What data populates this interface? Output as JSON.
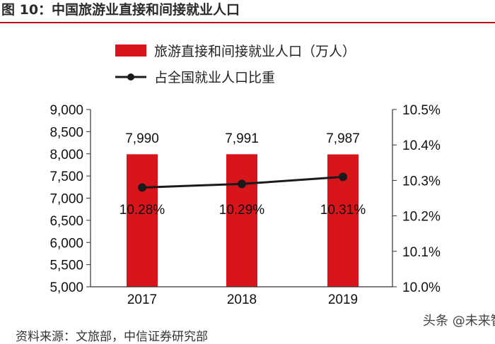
{
  "figure": {
    "title": "图 10：中国旅游业直接和间接就业人口",
    "source": "资料来源：文旅部，中信证券研究部",
    "watermark": "头条 @未来智库"
  },
  "colors": {
    "bar": "#d7151b",
    "line": "#1a1a1a",
    "title_rule": "#b3111e",
    "axis": "#333333"
  },
  "chart_data": {
    "type": "bar",
    "categories": [
      "2017",
      "2018",
      "2019"
    ],
    "series": [
      {
        "name": "旅游直接和间接就业人口（万人）",
        "type": "bar",
        "axis": "left",
        "values": [
          7990,
          7991,
          7987
        ],
        "labels": [
          "7,990",
          "7,991",
          "7,987"
        ]
      },
      {
        "name": "占全国就业人口比重",
        "type": "line",
        "axis": "right",
        "values": [
          10.28,
          10.29,
          10.31
        ],
        "labels": [
          "10.28%",
          "10.29%",
          "10.31%"
        ]
      }
    ],
    "y_left": {
      "min": 5000,
      "max": 9000,
      "ticks": [
        "5,000",
        "5,500",
        "6,000",
        "6,500",
        "7,000",
        "7,500",
        "8,000",
        "8,500",
        "9,000"
      ],
      "tick_values": [
        5000,
        5500,
        6000,
        6500,
        7000,
        7500,
        8000,
        8500,
        9000
      ]
    },
    "y_right": {
      "min": 10.0,
      "max": 10.5,
      "ticks": [
        "10.0%",
        "10.1%",
        "10.2%",
        "10.3%",
        "10.4%",
        "10.5%"
      ],
      "tick_values": [
        10.0,
        10.1,
        10.2,
        10.3,
        10.4,
        10.5
      ]
    },
    "legend_position": "top-left",
    "grid": false
  }
}
